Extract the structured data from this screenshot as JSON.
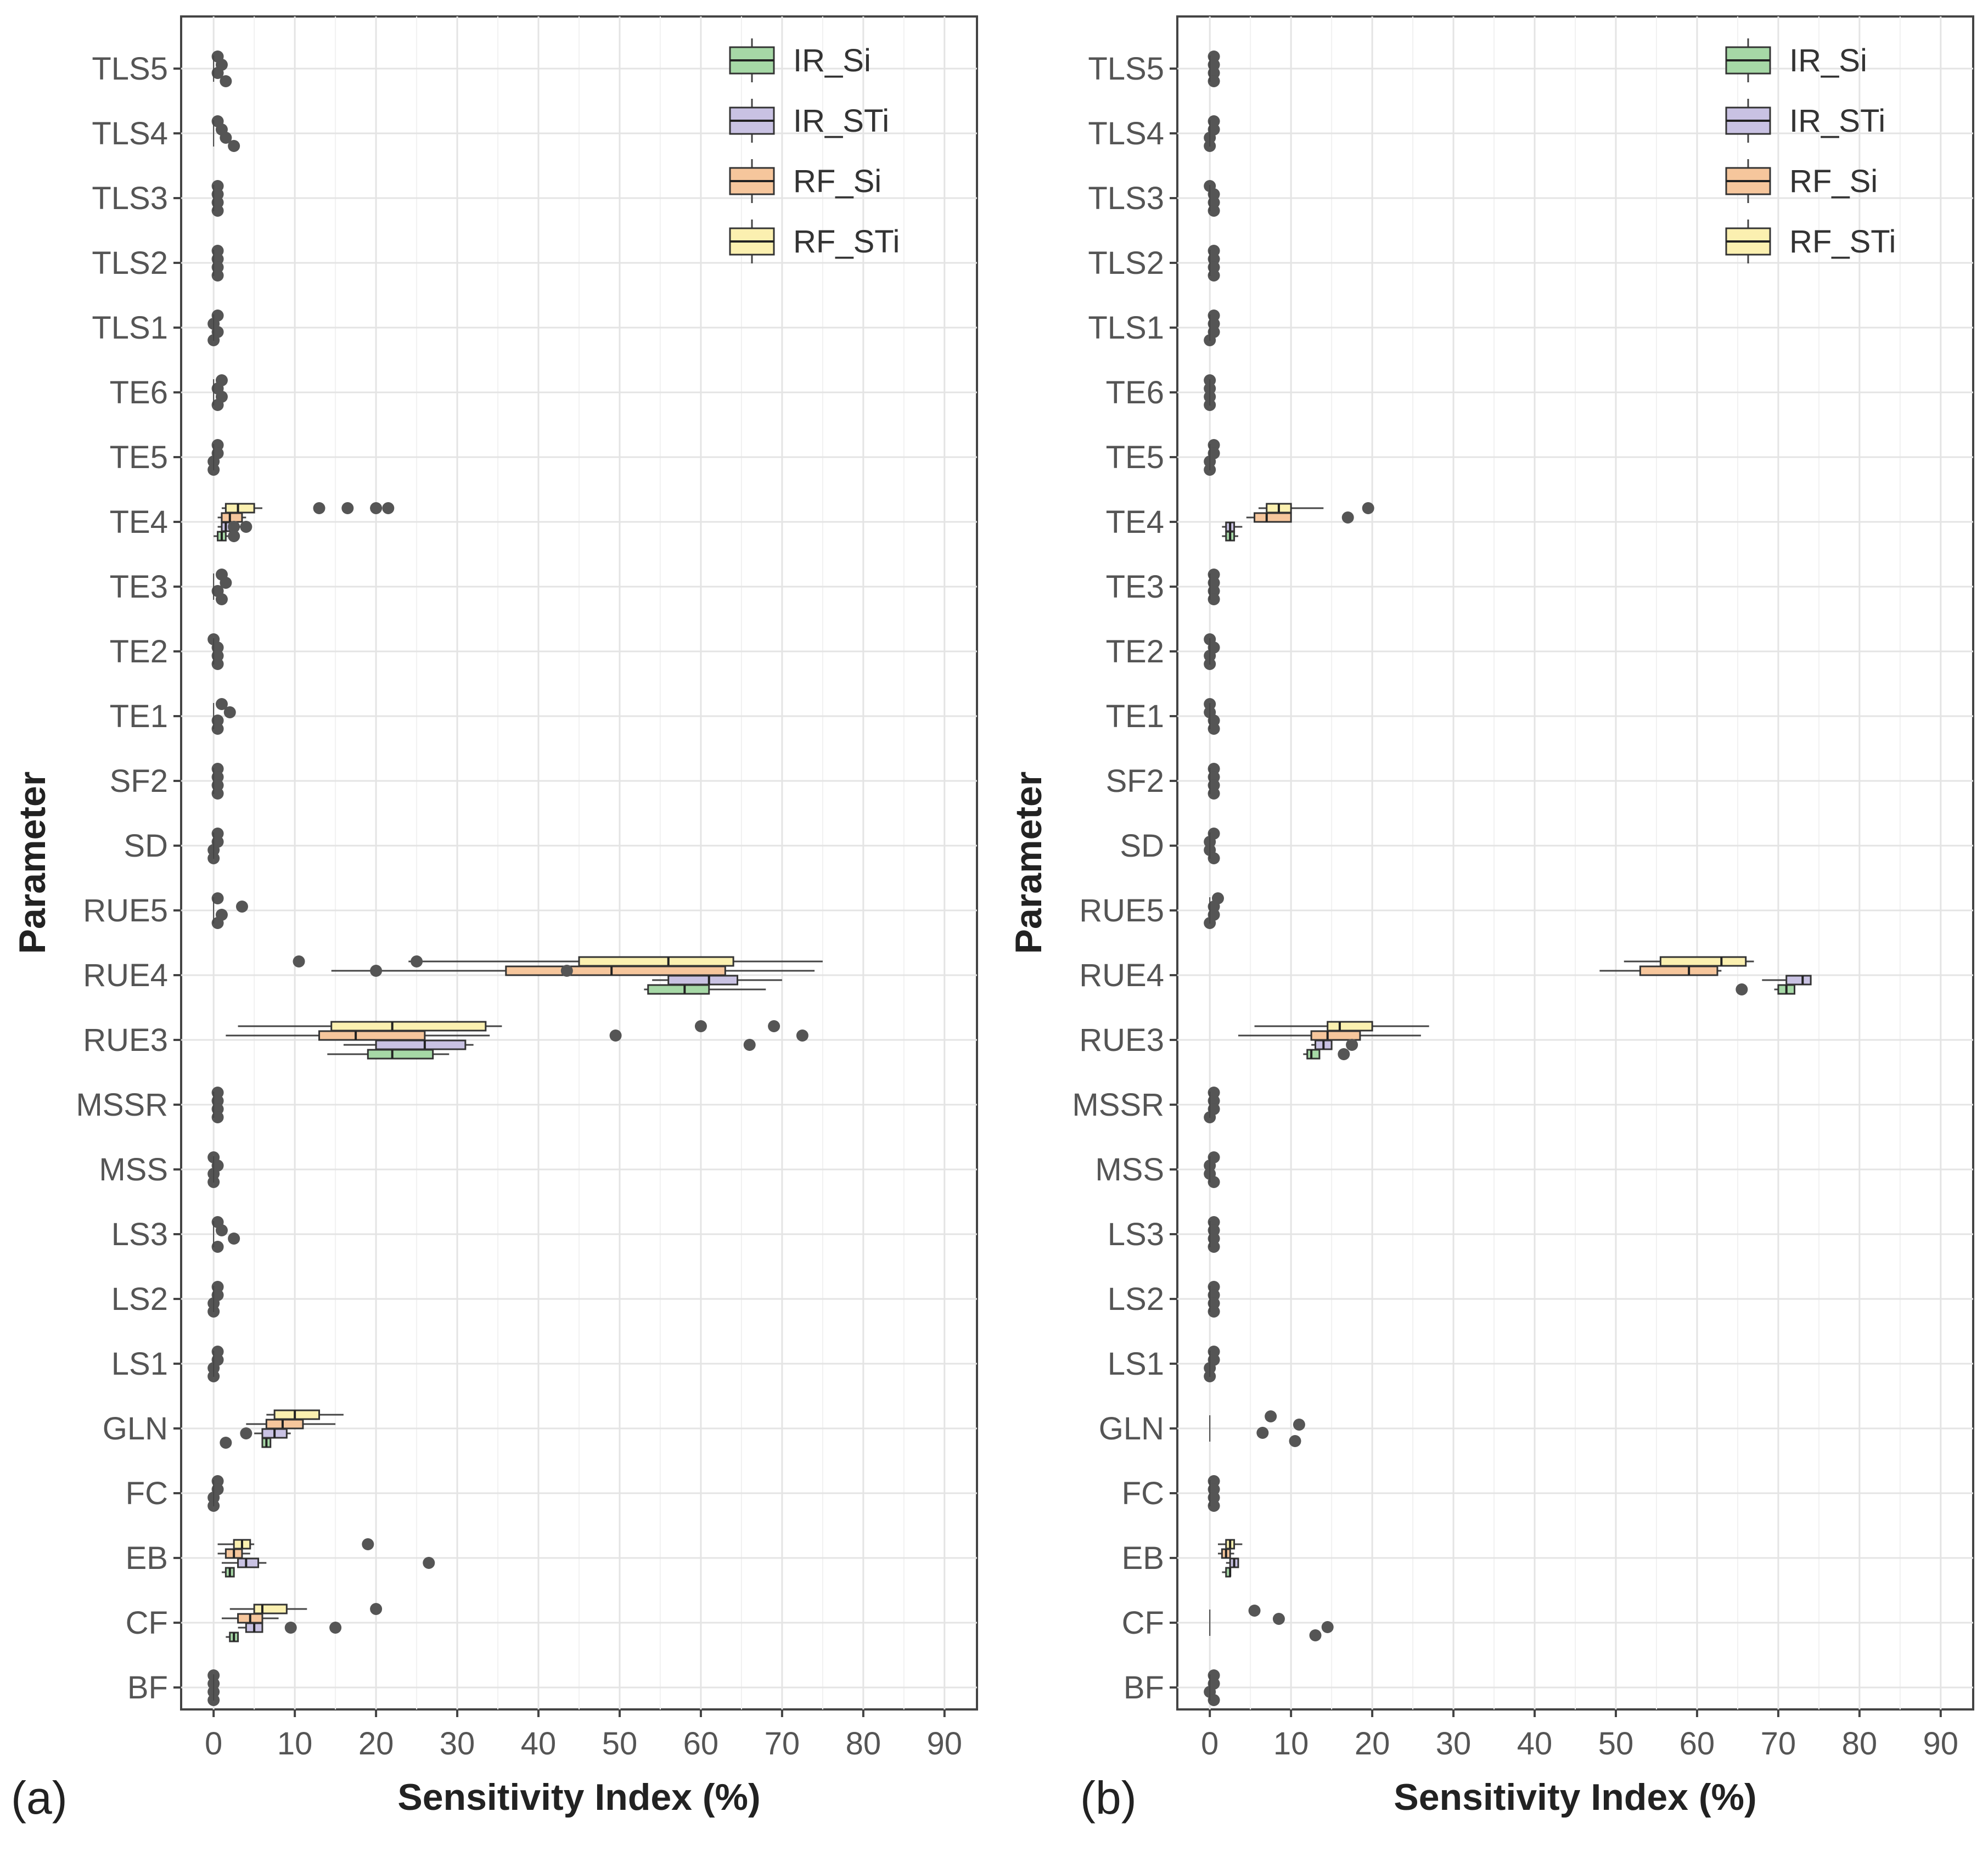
{
  "figure": {
    "panel_labels": [
      "(a)",
      "(b)"
    ]
  },
  "chart_data": [
    {
      "type": "box",
      "panel": "(a)",
      "orientation": "horizontal",
      "xlabel": "Sensitivity Index (%)",
      "ylabel": "Parameter",
      "xlim": [
        -4,
        94
      ],
      "x_ticks": [
        0,
        10,
        20,
        30,
        40,
        50,
        60,
        70,
        80,
        90
      ],
      "categories": [
        "TLS5",
        "TLS4",
        "TLS3",
        "TLS2",
        "TLS1",
        "TE6",
        "TE5",
        "TE4",
        "TE3",
        "TE2",
        "TE1",
        "SF2",
        "SD",
        "RUE5",
        "RUE4",
        "RUE3",
        "MSSR",
        "MSS",
        "LS3",
        "LS2",
        "LS1",
        "GLN",
        "FC",
        "EB",
        "CF",
        "BF"
      ],
      "grid": true,
      "legend_position": "top-right",
      "series": [
        {
          "name": "IR_Si",
          "color": "#a6d8a6"
        },
        {
          "name": "IR_STi",
          "color": "#c9c2e3"
        },
        {
          "name": "RF_Si",
          "color": "#f6c69c"
        },
        {
          "name": "RF_STi",
          "color": "#fbf0b0"
        }
      ],
      "boxes": [
        {
          "category": "TE4",
          "series": "RF_STi",
          "whisker_low": 1,
          "q1": 1.5,
          "median": 3,
          "q3": 5,
          "whisker_high": 6,
          "outliers": [
            13,
            16.5,
            20,
            21.5
          ]
        },
        {
          "category": "TE4",
          "series": "RF_Si",
          "whisker_low": 0.5,
          "q1": 1,
          "median": 2,
          "q3": 3.5,
          "whisker_high": 4,
          "outliers": []
        },
        {
          "category": "TE4",
          "series": "IR_STi",
          "whisker_low": 0.5,
          "q1": 1,
          "median": 1.5,
          "q3": 2,
          "whisker_high": 4,
          "outliers": [
            2.5,
            4
          ]
        },
        {
          "category": "TE4",
          "series": "IR_Si",
          "whisker_low": 0,
          "q1": 0.5,
          "median": 1,
          "q3": 1.5,
          "whisker_high": 2,
          "outliers": [
            2.5
          ]
        },
        {
          "category": "RUE4",
          "series": "RF_STi",
          "whisker_low": 24,
          "q1": 45,
          "median": 56,
          "q3": 64,
          "whisker_high": 75,
          "outliers": [
            10.5,
            25
          ]
        },
        {
          "category": "RUE4",
          "series": "RF_Si",
          "whisker_low": 14.5,
          "q1": 36,
          "median": 49,
          "q3": 63,
          "whisker_high": 74,
          "outliers": [
            20,
            43.5
          ]
        },
        {
          "category": "RUE4",
          "series": "IR_STi",
          "whisker_low": 54,
          "q1": 56,
          "median": 61,
          "q3": 64.5,
          "whisker_high": 70,
          "outliers": []
        },
        {
          "category": "RUE4",
          "series": "IR_Si",
          "whisker_low": 53,
          "q1": 53.5,
          "median": 58,
          "q3": 61,
          "whisker_high": 68,
          "outliers": []
        },
        {
          "category": "RUE3",
          "series": "RF_STi",
          "whisker_low": 3,
          "q1": 14.5,
          "median": 22,
          "q3": 33.5,
          "whisker_high": 35.5,
          "outliers": [
            60,
            69
          ]
        },
        {
          "category": "RUE3",
          "series": "RF_Si",
          "whisker_low": 1.5,
          "q1": 13,
          "median": 17.5,
          "q3": 26,
          "whisker_high": 34,
          "outliers": [
            49.5,
            72.5
          ]
        },
        {
          "category": "RUE3",
          "series": "IR_STi",
          "whisker_low": 16,
          "q1": 20,
          "median": 26,
          "q3": 31,
          "whisker_high": 32,
          "outliers": [
            66
          ]
        },
        {
          "category": "RUE3",
          "series": "IR_Si",
          "whisker_low": 14,
          "q1": 19,
          "median": 22,
          "q3": 27,
          "whisker_high": 29,
          "outliers": []
        },
        {
          "category": "GLN",
          "series": "RF_STi",
          "whisker_low": 6.5,
          "q1": 7.5,
          "median": 10,
          "q3": 13,
          "whisker_high": 16,
          "outliers": []
        },
        {
          "category": "GLN",
          "series": "RF_Si",
          "whisker_low": 4,
          "q1": 6.5,
          "median": 8.5,
          "q3": 11,
          "whisker_high": 15,
          "outliers": []
        },
        {
          "category": "GLN",
          "series": "IR_STi",
          "whisker_low": 5,
          "q1": 6,
          "median": 7.5,
          "q3": 9,
          "whisker_high": 9.5,
          "outliers": [
            4
          ]
        },
        {
          "category": "GLN",
          "series": "IR_Si",
          "whisker_low": 6,
          "q1": 6,
          "median": 6.5,
          "q3": 7,
          "whisker_high": 7,
          "outliers": [
            1.5
          ]
        },
        {
          "category": "EB",
          "series": "RF_STi",
          "whisker_low": 0.5,
          "q1": 2.5,
          "median": 3.5,
          "q3": 4.5,
          "whisker_high": 5,
          "outliers": [
            19
          ]
        },
        {
          "category": "EB",
          "series": "RF_Si",
          "whisker_low": 0.5,
          "q1": 1.5,
          "median": 2.5,
          "q3": 3.5,
          "whisker_high": 4.5,
          "outliers": []
        },
        {
          "category": "EB",
          "series": "IR_STi",
          "whisker_low": 1,
          "q1": 3,
          "median": 4,
          "q3": 5.5,
          "whisker_high": 6.5,
          "outliers": [
            26.5
          ]
        },
        {
          "category": "EB",
          "series": "IR_Si",
          "whisker_low": 1,
          "q1": 1.5,
          "median": 2,
          "q3": 2.5,
          "whisker_high": 2.5,
          "outliers": []
        },
        {
          "category": "CF",
          "series": "RF_STi",
          "whisker_low": 2,
          "q1": 5,
          "median": 6,
          "q3": 9,
          "whisker_high": 11.5,
          "outliers": [
            20
          ]
        },
        {
          "category": "CF",
          "series": "RF_Si",
          "whisker_low": 1,
          "q1": 3,
          "median": 4.5,
          "q3": 6,
          "whisker_high": 8,
          "outliers": []
        },
        {
          "category": "CF",
          "series": "IR_STi",
          "whisker_low": 3,
          "q1": 4,
          "median": 5,
          "q3": 6,
          "whisker_high": 6,
          "outliers": [
            9.5,
            15
          ]
        },
        {
          "category": "CF",
          "series": "IR_Si",
          "whisker_low": 1.5,
          "q1": 2,
          "median": 2.5,
          "q3": 3,
          "whisker_high": 3,
          "outliers": []
        }
      ],
      "dots": [
        {
          "category": "TLS5",
          "x": [
            0.5,
            1,
            0.5,
            1.5
          ]
        },
        {
          "category": "TLS4",
          "x": [
            0.5,
            1,
            1.5,
            2.5
          ]
        },
        {
          "category": "TLS3",
          "x": [
            0.5,
            0.5,
            0.5,
            0.5
          ]
        },
        {
          "category": "TLS2",
          "x": [
            0.5,
            0.5,
            0.5,
            0.5
          ]
        },
        {
          "category": "TLS1",
          "x": [
            0.5,
            0,
            0.5,
            0
          ]
        },
        {
          "category": "TE6",
          "x": [
            1,
            0.5,
            1,
            0.5
          ]
        },
        {
          "category": "TE5",
          "x": [
            0.5,
            0.5,
            0,
            0
          ]
        },
        {
          "category": "TE3",
          "x": [
            1,
            1.5,
            0.5,
            1
          ]
        },
        {
          "category": "TE2",
          "x": [
            0,
            0.5,
            0.5,
            0.5
          ]
        },
        {
          "category": "TE1",
          "x": [
            1,
            2,
            0.5,
            0.5
          ]
        },
        {
          "category": "SF2",
          "x": [
            0.5,
            0.5,
            0.5,
            0.5
          ]
        },
        {
          "category": "SD",
          "x": [
            0.5,
            0.5,
            0,
            0
          ]
        },
        {
          "category": "RUE5",
          "x": [
            0.5,
            3.5,
            1,
            0.5
          ]
        },
        {
          "category": "MSSR",
          "x": [
            0.5,
            0.5,
            0.5,
            0.5
          ]
        },
        {
          "category": "MSS",
          "x": [
            0,
            0.5,
            0,
            0
          ]
        },
        {
          "category": "LS3",
          "x": [
            0.5,
            1,
            2.5,
            0.5
          ]
        },
        {
          "category": "LS2",
          "x": [
            0.5,
            0.5,
            0,
            0
          ]
        },
        {
          "category": "LS1",
          "x": [
            0.5,
            0.5,
            0,
            0
          ]
        },
        {
          "category": "FC",
          "x": [
            0.5,
            0.5,
            0,
            0
          ]
        },
        {
          "category": "BF",
          "x": [
            0,
            0,
            0,
            0
          ]
        }
      ]
    },
    {
      "type": "box",
      "panel": "(b)",
      "orientation": "horizontal",
      "xlabel": "Sensitivity Index (%)",
      "ylabel": "Parameter",
      "xlim": [
        -4,
        94
      ],
      "x_ticks": [
        0,
        10,
        20,
        30,
        40,
        50,
        60,
        70,
        80,
        90
      ],
      "categories": [
        "TLS5",
        "TLS4",
        "TLS3",
        "TLS2",
        "TLS1",
        "TE6",
        "TE5",
        "TE4",
        "TE3",
        "TE2",
        "TE1",
        "SF2",
        "SD",
        "RUE5",
        "RUE4",
        "RUE3",
        "MSSR",
        "MSS",
        "LS3",
        "LS2",
        "LS1",
        "GLN",
        "FC",
        "EB",
        "CF",
        "BF"
      ],
      "grid": true,
      "legend_position": "top-right",
      "series": [
        {
          "name": "IR_Si",
          "color": "#a6d8a6"
        },
        {
          "name": "IR_STi",
          "color": "#c9c2e3"
        },
        {
          "name": "RF_Si",
          "color": "#f6c69c"
        },
        {
          "name": "RF_STi",
          "color": "#fbf0b0"
        }
      ],
      "boxes": [
        {
          "category": "TE4",
          "series": "RF_STi",
          "whisker_low": 6,
          "q1": 7,
          "median": 8.5,
          "q3": 10,
          "whisker_high": 14,
          "outliers": [
            19.5
          ]
        },
        {
          "category": "TE4",
          "series": "RF_Si",
          "whisker_low": 4.5,
          "q1": 5.5,
          "median": 7,
          "q3": 10,
          "whisker_high": 10,
          "outliers": [
            17
          ]
        },
        {
          "category": "TE4",
          "series": "IR_STi",
          "whisker_low": 1.5,
          "q1": 2,
          "median": 2.5,
          "q3": 3,
          "whisker_high": 4,
          "outliers": []
        },
        {
          "category": "TE4",
          "series": "IR_Si",
          "whisker_low": 1.5,
          "q1": 2,
          "median": 2.5,
          "q3": 3,
          "whisker_high": 3.5,
          "outliers": []
        },
        {
          "category": "RUE4",
          "series": "RF_STi",
          "whisker_low": 51,
          "q1": 55.5,
          "median": 63,
          "q3": 66,
          "whisker_high": 67,
          "outliers": []
        },
        {
          "category": "RUE4",
          "series": "RF_Si",
          "whisker_low": 48,
          "q1": 53,
          "median": 59,
          "q3": 62.5,
          "whisker_high": 63,
          "outliers": []
        },
        {
          "category": "RUE4",
          "series": "IR_STi",
          "whisker_low": 68,
          "q1": 71,
          "median": 73,
          "q3": 74,
          "whisker_high": 74,
          "outliers": []
        },
        {
          "category": "RUE4",
          "series": "IR_Si",
          "whisker_low": 69.5,
          "q1": 70,
          "median": 71,
          "q3": 72,
          "whisker_high": 72,
          "outliers": [
            65.5
          ]
        },
        {
          "category": "RUE3",
          "series": "RF_STi",
          "whisker_low": 5.5,
          "q1": 14.5,
          "median": 16,
          "q3": 20,
          "whisker_high": 27,
          "outliers": []
        },
        {
          "category": "RUE3",
          "series": "RF_Si",
          "whisker_low": 3.5,
          "q1": 12.5,
          "median": 14.5,
          "q3": 18.5,
          "whisker_high": 26,
          "outliers": []
        },
        {
          "category": "RUE3",
          "series": "IR_STi",
          "whisker_low": 12.5,
          "q1": 13,
          "median": 14,
          "q3": 15,
          "whisker_high": 15,
          "outliers": [
            17.5
          ]
        },
        {
          "category": "RUE3",
          "series": "IR_Si",
          "whisker_low": 11.5,
          "q1": 12,
          "median": 12.5,
          "q3": 13.5,
          "whisker_high": 13.5,
          "outliers": [
            16.5
          ]
        },
        {
          "category": "EB",
          "series": "RF_STi",
          "whisker_low": 1,
          "q1": 2,
          "median": 2.5,
          "q3": 3,
          "whisker_high": 4,
          "outliers": []
        },
        {
          "category": "EB",
          "series": "RF_Si",
          "whisker_low": 1,
          "q1": 1.5,
          "median": 2,
          "q3": 2.5,
          "whisker_high": 3,
          "outliers": []
        },
        {
          "category": "EB",
          "series": "IR_STi",
          "whisker_low": 2,
          "q1": 2.5,
          "median": 3,
          "q3": 3.5,
          "whisker_high": 3.5,
          "outliers": []
        },
        {
          "category": "EB",
          "series": "IR_Si",
          "whisker_low": 1.5,
          "q1": 2,
          "median": 2.5,
          "q3": 2.5,
          "whisker_high": 2.5,
          "outliers": []
        }
      ],
      "dots": [
        {
          "category": "TLS5",
          "x": [
            0.5,
            0.5,
            0.5,
            0.5
          ]
        },
        {
          "category": "TLS4",
          "x": [
            0.5,
            0.5,
            0,
            0
          ]
        },
        {
          "category": "TLS3",
          "x": [
            0,
            0.5,
            0.5,
            0.5
          ]
        },
        {
          "category": "TLS2",
          "x": [
            0.5,
            0.5,
            0.5,
            0.5
          ]
        },
        {
          "category": "TLS1",
          "x": [
            0.5,
            0.5,
            0.5,
            0
          ]
        },
        {
          "category": "TE6",
          "x": [
            0,
            0,
            0,
            0
          ]
        },
        {
          "category": "TE5",
          "x": [
            0.5,
            0.5,
            0,
            0
          ]
        },
        {
          "category": "TE3",
          "x": [
            0.5,
            0.5,
            0.5,
            0.5
          ]
        },
        {
          "category": "TE2",
          "x": [
            0,
            0.5,
            0,
            0
          ]
        },
        {
          "category": "TE1",
          "x": [
            0,
            0,
            0.5,
            0.5
          ]
        },
        {
          "category": "SF2",
          "x": [
            0.5,
            0.5,
            0.5,
            0.5
          ]
        },
        {
          "category": "SD",
          "x": [
            0.5,
            0,
            0,
            0.5
          ]
        },
        {
          "category": "RUE5",
          "x": [
            1,
            0.5,
            0.5,
            0
          ]
        },
        {
          "category": "MSSR",
          "x": [
            0.5,
            0.5,
            0.5,
            0
          ]
        },
        {
          "category": "MSS",
          "x": [
            0.5,
            0,
            0,
            0.5
          ]
        },
        {
          "category": "LS3",
          "x": [
            0.5,
            0.5,
            0.5,
            0.5
          ]
        },
        {
          "category": "LS2",
          "x": [
            0.5,
            0.5,
            0.5,
            0.5
          ]
        },
        {
          "category": "LS1",
          "x": [
            0.5,
            0.5,
            0,
            0
          ]
        },
        {
          "category": "GLN",
          "x": [
            7.5,
            11,
            6.5,
            10.5
          ]
        },
        {
          "category": "FC",
          "x": [
            0.5,
            0.5,
            0.5,
            0.5
          ]
        },
        {
          "category": "CF",
          "x": [
            5.5,
            8.5,
            14.5,
            13
          ]
        },
        {
          "category": "BF",
          "x": [
            0.5,
            0.5,
            0,
            0.5
          ]
        }
      ]
    }
  ]
}
